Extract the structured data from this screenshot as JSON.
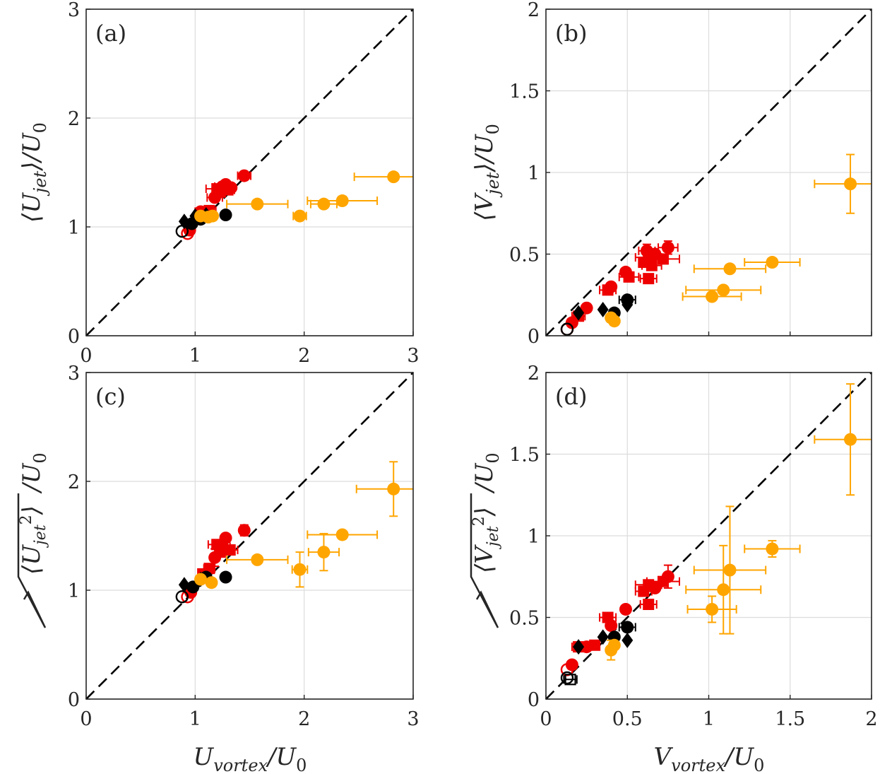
{
  "figure": {
    "description_free": true
  },
  "colors": {
    "red": "#ee0000",
    "orange": "#ffa500",
    "black": "#000000",
    "grid": "#dcdcdc",
    "axis": "#262626",
    "dashed": "#000000"
  },
  "chart_data": [
    {
      "id": "a",
      "type": "scatter",
      "panel_label": "(a)",
      "xlabel": "U_vortex/U_0",
      "ylabel": "⟨U_jet⟩/U_0",
      "xlim": [
        0,
        3
      ],
      "ylim": [
        0,
        3
      ],
      "xticks": [
        0,
        1,
        2,
        3
      ],
      "xtick_labels": [
        "0",
        "1",
        "2",
        "3"
      ],
      "yticks": [
        0,
        1,
        2,
        3
      ],
      "ytick_labels": [
        "0",
        "1",
        "2",
        "3"
      ],
      "show_xticklabels": true,
      "show_xlabel": false,
      "grid": true,
      "reference_line": "y = x (dashed)",
      "series": [
        {
          "name": "red",
          "color": "red",
          "points": [
            {
              "x": 0.93,
              "y": 0.94,
              "m": "o-open"
            },
            {
              "x": 0.95,
              "y": 0.97,
              "m": "o"
            },
            {
              "x": 1.05,
              "y": 1.14,
              "m": "o",
              "xe": 0.05
            },
            {
              "x": 1.08,
              "y": 1.12,
              "m": "s"
            },
            {
              "x": 1.13,
              "y": 1.15,
              "m": "s",
              "xe": 0.06
            },
            {
              "x": 1.18,
              "y": 1.27,
              "m": "o",
              "xe": 0.07
            },
            {
              "x": 1.2,
              "y": 1.35,
              "m": "s",
              "xe": 0.1
            },
            {
              "x": 1.23,
              "y": 1.32,
              "m": "s"
            },
            {
              "x": 1.25,
              "y": 1.37,
              "m": "o",
              "xe": 0.07
            },
            {
              "x": 1.28,
              "y": 1.39,
              "m": "o"
            },
            {
              "x": 1.3,
              "y": 1.34,
              "m": "s",
              "xe": 0.06
            },
            {
              "x": 1.33,
              "y": 1.36,
              "m": "o"
            },
            {
              "x": 1.45,
              "y": 1.47,
              "m": "o",
              "xe": 0.06
            }
          ]
        },
        {
          "name": "black",
          "color": "black",
          "points": [
            {
              "x": 0.88,
              "y": 0.96,
              "m": "o-open"
            },
            {
              "x": 0.9,
              "y": 1.05,
              "m": "d"
            },
            {
              "x": 0.97,
              "y": 1.03,
              "m": "o"
            },
            {
              "x": 1.0,
              "y": 1.1,
              "m": "d"
            },
            {
              "x": 1.05,
              "y": 1.07,
              "m": "o"
            },
            {
              "x": 1.1,
              "y": 1.11,
              "m": "d"
            },
            {
              "x": 1.28,
              "y": 1.11,
              "m": "o"
            }
          ]
        },
        {
          "name": "orange",
          "color": "orange",
          "points": [
            {
              "x": 1.05,
              "y": 1.1,
              "m": "o"
            },
            {
              "x": 1.12,
              "y": 1.09,
              "m": "o"
            },
            {
              "x": 1.16,
              "y": 1.1,
              "m": "o"
            },
            {
              "x": 1.57,
              "y": 1.21,
              "m": "o",
              "xe": 0.28
            },
            {
              "x": 1.96,
              "y": 1.1,
              "m": "o",
              "xe": 0.06
            },
            {
              "x": 2.18,
              "y": 1.21,
              "m": "o",
              "xe": 0.12
            },
            {
              "x": 2.35,
              "y": 1.24,
              "m": "o",
              "xe": 0.32,
              "ye": 0.04
            },
            {
              "x": 2.82,
              "y": 1.46,
              "m": "o",
              "xe": 0.36
            }
          ]
        }
      ]
    },
    {
      "id": "b",
      "type": "scatter",
      "panel_label": "(b)",
      "xlabel": "V_vortex/U_0",
      "ylabel": "⟨V_jet⟩/U_0",
      "xlim": [
        0,
        2
      ],
      "ylim": [
        0,
        2
      ],
      "xticks": [
        0,
        0.5,
        1,
        1.5,
        2
      ],
      "xtick_labels": [
        "0",
        "0.5",
        "1",
        "1.5",
        "2"
      ],
      "yticks": [
        0,
        0.5,
        1,
        1.5,
        2
      ],
      "ytick_labels": [
        "0",
        "0.5",
        "1",
        "1.5",
        "2"
      ],
      "show_xticklabels": false,
      "show_xlabel": false,
      "grid": true,
      "reference_line": "y = x (dashed)",
      "series": [
        {
          "name": "red",
          "color": "red",
          "points": [
            {
              "x": 0.13,
              "y": 0.04,
              "m": "o-open"
            },
            {
              "x": 0.16,
              "y": 0.08,
              "m": "o"
            },
            {
              "x": 0.2,
              "y": 0.12,
              "m": "s",
              "xe": 0.04
            },
            {
              "x": 0.25,
              "y": 0.17,
              "m": "o"
            },
            {
              "x": 0.38,
              "y": 0.28,
              "m": "s",
              "xe": 0.05
            },
            {
              "x": 0.4,
              "y": 0.3,
              "m": "o"
            },
            {
              "x": 0.49,
              "y": 0.39,
              "m": "o"
            },
            {
              "x": 0.51,
              "y": 0.36,
              "m": "s",
              "xe": 0.06
            },
            {
              "x": 0.6,
              "y": 0.45,
              "m": "s"
            },
            {
              "x": 0.62,
              "y": 0.52,
              "m": "o",
              "xe": 0.05,
              "ye": 0.04
            },
            {
              "x": 0.63,
              "y": 0.48,
              "m": "s",
              "xe": 0.08
            },
            {
              "x": 0.65,
              "y": 0.43,
              "m": "s",
              "xe": 0.06
            },
            {
              "x": 0.67,
              "y": 0.5,
              "m": "o"
            },
            {
              "x": 0.72,
              "y": 0.47,
              "m": "s",
              "xe": 0.1
            },
            {
              "x": 0.75,
              "y": 0.54,
              "m": "o",
              "xe": 0.06,
              "ye": 0.04
            },
            {
              "x": 0.63,
              "y": 0.35,
              "m": "s",
              "xe": 0.05
            }
          ]
        },
        {
          "name": "black",
          "color": "black",
          "points": [
            {
              "x": 0.13,
              "y": 0.04,
              "m": "o-open"
            },
            {
              "x": 0.2,
              "y": 0.14,
              "m": "d"
            },
            {
              "x": 0.35,
              "y": 0.16,
              "m": "d"
            },
            {
              "x": 0.42,
              "y": 0.14,
              "m": "o"
            },
            {
              "x": 0.5,
              "y": 0.22,
              "m": "o",
              "xe": 0.05
            },
            {
              "x": 0.5,
              "y": 0.19,
              "m": "d"
            }
          ]
        },
        {
          "name": "orange",
          "color": "orange",
          "points": [
            {
              "x": 0.42,
              "y": 0.09,
              "m": "o"
            },
            {
              "x": 0.4,
              "y": 0.11,
              "m": "o"
            },
            {
              "x": 1.02,
              "y": 0.24,
              "m": "o",
              "xe": 0.18
            },
            {
              "x": 1.09,
              "y": 0.28,
              "m": "o",
              "xe": 0.23
            },
            {
              "x": 1.13,
              "y": 0.41,
              "m": "o",
              "xe": 0.22
            },
            {
              "x": 1.39,
              "y": 0.45,
              "m": "o",
              "xe": 0.17
            },
            {
              "x": 1.87,
              "y": 0.93,
              "m": "o",
              "xe": 0.22,
              "ye": 0.18
            }
          ]
        }
      ]
    },
    {
      "id": "c",
      "type": "scatter",
      "panel_label": "(c)",
      "xlabel": "U_vortex/U_0",
      "ylabel": "√⟨U_jet²⟩/U_0",
      "xlim": [
        0,
        3
      ],
      "ylim": [
        0,
        3
      ],
      "xticks": [
        0,
        1,
        2,
        3
      ],
      "xtick_labels": [
        "0",
        "1",
        "2",
        "3"
      ],
      "yticks": [
        0,
        1,
        2,
        3
      ],
      "ytick_labels": [
        "0",
        "1",
        "2",
        "3"
      ],
      "show_xticklabels": true,
      "show_xlabel": true,
      "grid": true,
      "reference_line": "y = x (dashed)",
      "series": [
        {
          "name": "red",
          "color": "red",
          "points": [
            {
              "x": 0.93,
              "y": 0.94,
              "m": "o-open"
            },
            {
              "x": 0.96,
              "y": 0.98,
              "m": "o"
            },
            {
              "x": 1.07,
              "y": 1.15,
              "m": "s"
            },
            {
              "x": 1.13,
              "y": 1.2,
              "m": "s",
              "xe": 0.05
            },
            {
              "x": 1.18,
              "y": 1.3,
              "m": "o",
              "ye": 0.08
            },
            {
              "x": 1.2,
              "y": 1.42,
              "m": "s",
              "xe": 0.08
            },
            {
              "x": 1.23,
              "y": 1.35,
              "m": "s"
            },
            {
              "x": 1.25,
              "y": 1.4,
              "m": "o",
              "xe": 0.07
            },
            {
              "x": 1.28,
              "y": 1.48,
              "m": "o"
            },
            {
              "x": 1.32,
              "y": 1.37,
              "m": "s",
              "xe": 0.07
            },
            {
              "x": 1.45,
              "y": 1.55,
              "m": "o",
              "ye": 0.05
            }
          ]
        },
        {
          "name": "black",
          "color": "black",
          "points": [
            {
              "x": 0.88,
              "y": 0.94,
              "m": "o-open"
            },
            {
              "x": 0.9,
              "y": 1.05,
              "m": "d"
            },
            {
              "x": 0.98,
              "y": 1.03,
              "m": "o"
            },
            {
              "x": 1.05,
              "y": 1.1,
              "m": "d"
            },
            {
              "x": 1.1,
              "y": 1.12,
              "m": "o"
            },
            {
              "x": 1.28,
              "y": 1.12,
              "m": "o"
            }
          ]
        },
        {
          "name": "orange",
          "color": "orange",
          "points": [
            {
              "x": 1.05,
              "y": 1.1,
              "m": "o"
            },
            {
              "x": 1.15,
              "y": 1.07,
              "m": "o"
            },
            {
              "x": 1.57,
              "y": 1.28,
              "m": "o",
              "xe": 0.28
            },
            {
              "x": 1.96,
              "y": 1.19,
              "m": "o",
              "xe": 0.07,
              "ye": 0.16
            },
            {
              "x": 2.18,
              "y": 1.35,
              "m": "o",
              "xe": 0.14,
              "ye": 0.17
            },
            {
              "x": 2.35,
              "y": 1.51,
              "m": "o",
              "xe": 0.32
            },
            {
              "x": 2.82,
              "y": 1.93,
              "m": "o",
              "xe": 0.34,
              "ye": 0.25
            }
          ]
        }
      ]
    },
    {
      "id": "d",
      "type": "scatter",
      "panel_label": "(d)",
      "xlabel": "V_vortex/U_0",
      "ylabel": "√⟨V_jet²⟩/U_0",
      "xlim": [
        0,
        2
      ],
      "ylim": [
        0,
        2
      ],
      "xticks": [
        0,
        0.5,
        1,
        1.5,
        2
      ],
      "xtick_labels": [
        "0",
        "0.5",
        "1",
        "1.5",
        "2"
      ],
      "yticks": [
        0,
        0.5,
        1,
        1.5,
        2
      ],
      "ytick_labels": [
        "0",
        "0.5",
        "1",
        "1.5",
        "2"
      ],
      "show_xticklabels": true,
      "show_xlabel": true,
      "grid": true,
      "reference_line": "y = x (dashed)",
      "series": [
        {
          "name": "red",
          "color": "red",
          "points": [
            {
              "x": 0.13,
              "y": 0.18,
              "m": "o-open"
            },
            {
              "x": 0.16,
              "y": 0.21,
              "m": "o"
            },
            {
              "x": 0.2,
              "y": 0.32,
              "m": "s",
              "xe": 0.04
            },
            {
              "x": 0.25,
              "y": 0.32,
              "m": "o"
            },
            {
              "x": 0.3,
              "y": 0.33,
              "m": "s"
            },
            {
              "x": 0.38,
              "y": 0.5,
              "m": "s",
              "xe": 0.05
            },
            {
              "x": 0.4,
              "y": 0.45,
              "m": "o"
            },
            {
              "x": 0.49,
              "y": 0.55,
              "m": "o"
            },
            {
              "x": 0.6,
              "y": 0.66,
              "m": "s",
              "xe": 0.05
            },
            {
              "x": 0.63,
              "y": 0.7,
              "m": "s",
              "xe": 0.08
            },
            {
              "x": 0.63,
              "y": 0.58,
              "m": "s",
              "xe": 0.05
            },
            {
              "x": 0.67,
              "y": 0.68,
              "m": "o"
            },
            {
              "x": 0.72,
              "y": 0.72,
              "m": "s",
              "xe": 0.1
            },
            {
              "x": 0.75,
              "y": 0.75,
              "m": "o",
              "ye": 0.07
            }
          ]
        },
        {
          "name": "black",
          "color": "black",
          "points": [
            {
              "x": 0.13,
              "y": 0.13,
              "m": "o-open"
            },
            {
              "x": 0.15,
              "y": 0.12,
              "m": "s-open",
              "xe": 0.04
            },
            {
              "x": 0.2,
              "y": 0.32,
              "m": "d"
            },
            {
              "x": 0.35,
              "y": 0.38,
              "m": "d"
            },
            {
              "x": 0.42,
              "y": 0.38,
              "m": "o"
            },
            {
              "x": 0.5,
              "y": 0.44,
              "m": "o",
              "xe": 0.05
            },
            {
              "x": 0.5,
              "y": 0.36,
              "m": "d"
            }
          ]
        },
        {
          "name": "orange",
          "color": "orange",
          "points": [
            {
              "x": 0.4,
              "y": 0.3,
              "m": "o",
              "ye": 0.06
            },
            {
              "x": 0.42,
              "y": 0.33,
              "m": "o"
            },
            {
              "x": 1.02,
              "y": 0.55,
              "m": "o",
              "xe": 0.15,
              "ye": 0.08
            },
            {
              "x": 1.09,
              "y": 0.67,
              "m": "o",
              "xe": 0.23,
              "ye": 0.27
            },
            {
              "x": 1.13,
              "y": 0.79,
              "m": "o",
              "xe": 0.22,
              "ye": 0.39
            },
            {
              "x": 1.39,
              "y": 0.92,
              "m": "o",
              "xe": 0.17,
              "ye": 0.05
            },
            {
              "x": 1.87,
              "y": 1.59,
              "m": "o",
              "xe": 0.22,
              "ye": 0.34
            }
          ]
        }
      ]
    }
  ]
}
